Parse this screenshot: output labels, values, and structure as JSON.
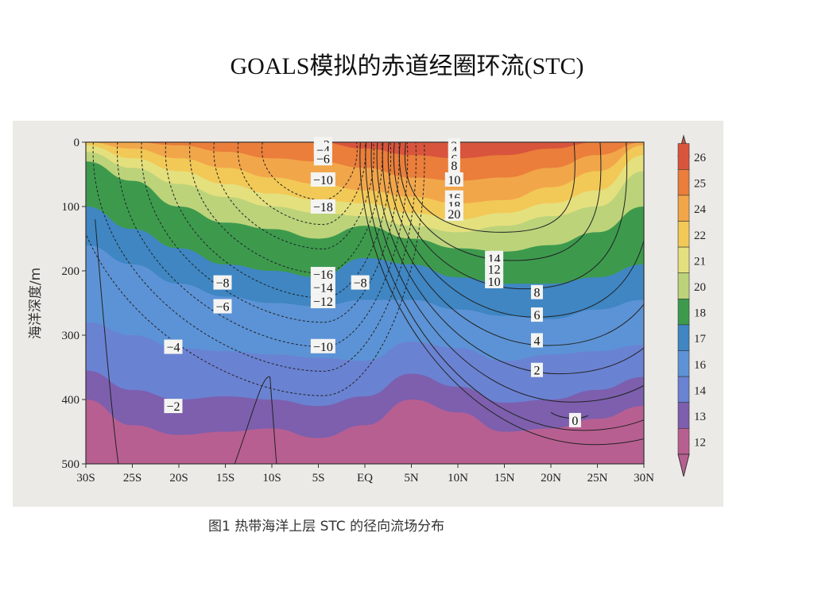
{
  "slide": {
    "title": "GOALS模拟的赤道经圈环流(STC)",
    "caption_partial": "图1  热带海洋上层 STC 的径向流场分布"
  },
  "chart_data": {
    "type": "contour",
    "title": "",
    "ylabel": "海洋深度/m",
    "xlabel": "",
    "x_ticks": [
      "30S",
      "25S",
      "20S",
      "15S",
      "10S",
      "5S",
      "EQ",
      "5N",
      "10N",
      "15N",
      "20N",
      "25N",
      "30N"
    ],
    "xlim": [
      -30,
      30
    ],
    "y_ticks": [
      "0",
      "100",
      "200",
      "300",
      "400",
      "500"
    ],
    "ylim": [
      500,
      0
    ],
    "colorbar_levels": [
      "26",
      "25",
      "24",
      "22",
      "21",
      "20",
      "18",
      "17",
      "16",
      "14",
      "13",
      "12"
    ],
    "colorbar_colors": [
      "#d9543c",
      "#ea7e3a",
      "#f2a64a",
      "#f2c957",
      "#e4e07e",
      "#bcd37a",
      "#3d9a4d",
      "#3f86c3",
      "#5c93d6",
      "#6a82d2",
      "#7d5fae",
      "#b85f91"
    ],
    "contour_labels": [
      {
        "text": "-2",
        "value": -2,
        "lon": -4.5,
        "depth": 3
      },
      {
        "text": "-4",
        "value": -4,
        "lon": -4.5,
        "depth": 12
      },
      {
        "text": "-6",
        "value": -6,
        "lon": -4.5,
        "depth": 25
      },
      {
        "text": "-10",
        "value": -10,
        "lon": -4.5,
        "depth": 58
      },
      {
        "text": "-18",
        "value": -18,
        "lon": -4.5,
        "depth": 100
      },
      {
        "text": "-8",
        "value": -8,
        "lon": -15.3,
        "depth": 218
      },
      {
        "text": "-6",
        "value": -6,
        "lon": -15.3,
        "depth": 255
      },
      {
        "text": "-16",
        "value": -16,
        "lon": -4.5,
        "depth": 205
      },
      {
        "text": "-14",
        "value": -14,
        "lon": -4.5,
        "depth": 225
      },
      {
        "text": "-12",
        "value": -12,
        "lon": -4.5,
        "depth": 247
      },
      {
        "text": "-8",
        "value": -8,
        "lon": -0.5,
        "depth": 218
      },
      {
        "text": "-4",
        "value": -4,
        "lon": -20.6,
        "depth": 318
      },
      {
        "text": "-10",
        "value": -10,
        "lon": -4.5,
        "depth": 317
      },
      {
        "text": "-2",
        "value": -2,
        "lon": -20.6,
        "depth": 410
      },
      {
        "text": "2",
        "value": 2,
        "lon": 9.6,
        "depth": 5
      },
      {
        "text": "4",
        "value": 4,
        "lon": 9.6,
        "depth": 13
      },
      {
        "text": "6",
        "value": 6,
        "lon": 9.6,
        "depth": 25
      },
      {
        "text": "8",
        "value": 8,
        "lon": 9.6,
        "depth": 36
      },
      {
        "text": "10",
        "value": 10,
        "lon": 9.6,
        "depth": 58
      },
      {
        "text": "16",
        "value": 16,
        "lon": 9.6,
        "depth": 86
      },
      {
        "text": "18",
        "value": 18,
        "lon": 9.6,
        "depth": 98
      },
      {
        "text": "20",
        "value": 20,
        "lon": 9.6,
        "depth": 111
      },
      {
        "text": "14",
        "value": 14,
        "lon": 13.9,
        "depth": 180
      },
      {
        "text": "12",
        "value": 12,
        "lon": 13.9,
        "depth": 197
      },
      {
        "text": "10",
        "value": 10,
        "lon": 13.9,
        "depth": 216
      },
      {
        "text": "8",
        "value": 8,
        "lon": 18.5,
        "depth": 233
      },
      {
        "text": "6",
        "value": 6,
        "lon": 18.5,
        "depth": 268
      },
      {
        "text": "4",
        "value": 4,
        "lon": 18.5,
        "depth": 308
      },
      {
        "text": "2",
        "value": 2,
        "lon": 18.5,
        "depth": 354
      },
      {
        "text": "0",
        "value": 0,
        "lon": 22.6,
        "depth": 432
      }
    ],
    "temperature_bands": [
      {
        "level": "26",
        "color": "#d9543c",
        "depths": [
          0,
          0,
          0,
          0,
          0,
          0,
          0,
          0,
          0,
          0,
          0,
          0,
          0
        ]
      },
      {
        "level": "25",
        "color": "#ea7e3a",
        "depths": [
          0,
          0,
          0,
          0,
          0,
          0,
          10,
          20,
          25,
          20,
          10,
          0,
          0
        ]
      },
      {
        "level": "24",
        "color": "#f2a64a",
        "depths": [
          0,
          0,
          5,
          15,
          25,
          30,
          40,
          55,
          60,
          55,
          40,
          20,
          0
        ]
      },
      {
        "level": "22",
        "color": "#f2c957",
        "depths": [
          0,
          10,
          25,
          40,
          55,
          65,
          75,
          85,
          95,
          90,
          70,
          45,
          5
        ]
      },
      {
        "level": "21",
        "color": "#e4e07e",
        "depths": [
          5,
          25,
          45,
          65,
          80,
          90,
          95,
          110,
          120,
          110,
          95,
          75,
          20
        ]
      },
      {
        "level": "20",
        "color": "#bcd37a",
        "depths": [
          15,
          40,
          65,
          85,
          100,
          110,
          115,
          130,
          140,
          130,
          115,
          100,
          45
        ]
      },
      {
        "level": "18",
        "color": "#3d9a4d",
        "depths": [
          30,
          60,
          100,
          125,
          135,
          150,
          130,
          150,
          165,
          170,
          160,
          140,
          100
        ]
      },
      {
        "level": "17",
        "color": "#3f86c3",
        "depths": [
          100,
          135,
          165,
          190,
          200,
          210,
          180,
          190,
          210,
          220,
          220,
          210,
          190
        ]
      },
      {
        "level": "16",
        "color": "#5c93d6",
        "depths": [
          160,
          190,
          220,
          240,
          250,
          255,
          245,
          245,
          260,
          270,
          275,
          260,
          245
        ]
      },
      {
        "level": "14",
        "color": "#6a82d2",
        "depths": [
          280,
          300,
          320,
          325,
          330,
          335,
          340,
          310,
          320,
          340,
          330,
          325,
          315
        ]
      },
      {
        "level": "13",
        "color": "#7d5fae",
        "depths": [
          355,
          385,
          400,
          395,
          400,
          410,
          395,
          360,
          380,
          405,
          400,
          385,
          365
        ]
      },
      {
        "level": "12",
        "color": "#b85f91",
        "depths": [
          400,
          440,
          455,
          450,
          445,
          460,
          440,
          400,
          420,
          450,
          445,
          430,
          410
        ]
      }
    ]
  }
}
